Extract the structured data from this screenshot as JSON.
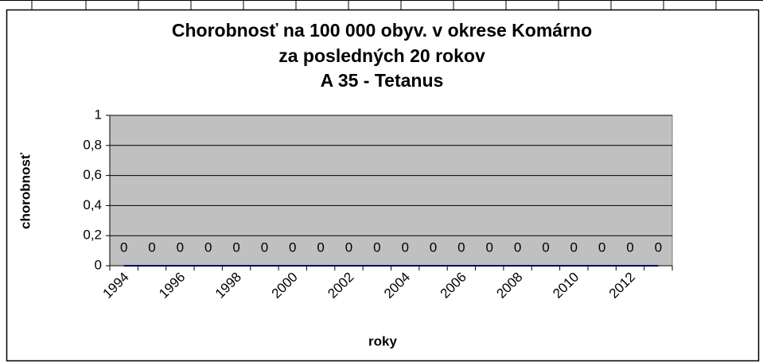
{
  "chart_data": {
    "type": "line",
    "title": "Chorobnosť na 100 000 obyv. v okrese Komárno",
    "subtitle": [
      "za posledných 20 rokov",
      "A 35 - Tetanus"
    ],
    "y_label": "chorobnosť",
    "x_label": "roky",
    "categories": [
      "1994",
      null,
      "1996",
      null,
      "1998",
      null,
      "2000",
      null,
      "2002",
      null,
      "2004",
      null,
      "2006",
      null,
      "2008",
      null,
      "2010",
      null,
      "2012",
      null
    ],
    "values": [
      0,
      0,
      0,
      0,
      0,
      0,
      0,
      0,
      0,
      0,
      0,
      0,
      0,
      0,
      0,
      0,
      0,
      0,
      0,
      0
    ],
    "color": "#000080",
    "plot_background": "#c0c0c0",
    "ylim": [
      0,
      1
    ],
    "yticks": [
      0,
      {
        "value": 0.2,
        "label": "0,2"
      },
      {
        "value": 0.4,
        "label": "0,4"
      },
      {
        "value": 0.6,
        "label": "0,6"
      },
      {
        "value": 0.8,
        "label": "0,8"
      },
      1
    ],
    "grid": true,
    "data_labels": true
  }
}
